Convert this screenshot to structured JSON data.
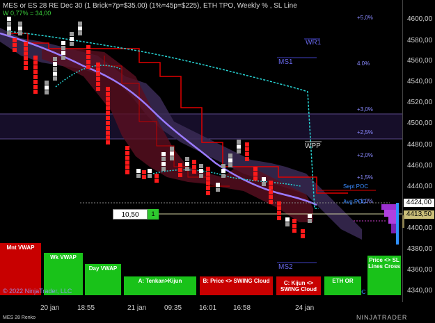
{
  "chart": {
    "title": "MES or ES 28 RE Dec 30 (1 Brick=7p=$35.00) (1%=45p=$225), ETH TPO, Weekly % , SL Line",
    "pnl": "W 0,77% = 34,00",
    "instrument_footer": "MES 28 Renko",
    "copyright": "© 2022 NinjaTrader, LLC",
    "logo": "NINJATRADER",
    "order_price": "10,50",
    "order_qty": "1"
  },
  "price_axis": {
    "ticks": [
      "4600,00",
      "4580,00",
      "4560,00",
      "4540,00",
      "4520,00",
      "4500,00",
      "4480,00",
      "4460,00",
      "4440,00",
      "4420,00",
      "4400,00",
      "4380,00",
      "4360,00",
      "4340,00"
    ],
    "current_price": "4424,00",
    "marker_price": "4413,50"
  },
  "time_axis": [
    "20 jan",
    "18:55",
    "21 jan",
    "09:35",
    "16:01",
    "16:58",
    "24 jan"
  ],
  "percent_levels": [
    "+5,0%",
    "4.0%",
    "+3,0%",
    "+2,5%",
    "+2,0%",
    "+1,5%",
    "+1,0%"
  ],
  "pivots": {
    "wr1": "WR1",
    "ms1": "MS1",
    "wpp": "WPP",
    "ms2": "MS2",
    "sept_poc": "Sept POC",
    "avg_poc": "Avg POC",
    "jan_poc": "Jan POC"
  },
  "buttons": {
    "mnt_vwap": "Mnt VWAP",
    "wk_vwap": "Wk VWAP",
    "day_vwap": "Day VWAP",
    "tenkan_kijun": "A: Tenkan>Kijun",
    "price_swing": "B: Price <> SWING Cloud",
    "kijun_swing": "C: Kijun <> SWING Cloud",
    "eth_or": "ETH OR",
    "price_sl": "Price <> SL Lines Cross"
  },
  "colors": {
    "bear": "#ff0000",
    "bull": "#ffffff",
    "cloud": "#3a2a55",
    "ma_purple": "#9b7bff",
    "ma_cyan": "#28d6d6",
    "red_line": "#e00000"
  }
}
